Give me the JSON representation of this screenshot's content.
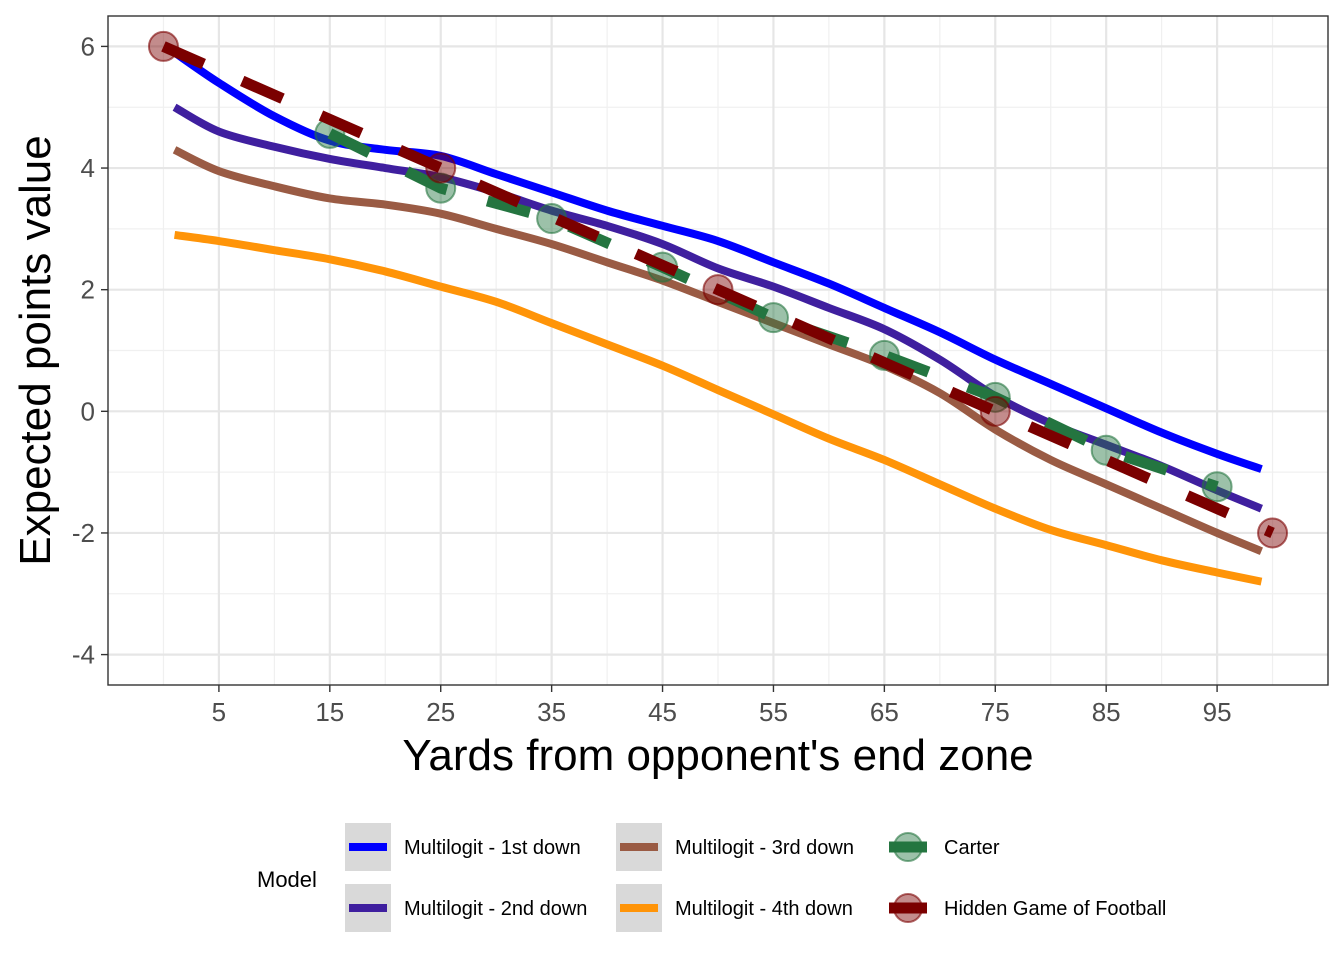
{
  "chart_data": {
    "type": "line",
    "title": "",
    "xlabel": "Yards from opponent's end zone",
    "ylabel": "Expected points value",
    "xlim": [
      -5,
      105
    ],
    "ylim": [
      -4.5,
      6.5
    ],
    "x_ticks": [
      5,
      15,
      25,
      35,
      45,
      55,
      65,
      75,
      85,
      95
    ],
    "y_ticks": [
      -4,
      -2,
      0,
      2,
      4,
      6
    ],
    "grid": true,
    "legend": {
      "title": "Model",
      "position": "bottom"
    },
    "series": [
      {
        "name": "Multilogit - 1st down",
        "style": "line",
        "color": "#0000ff",
        "x": [
          1,
          5,
          10,
          15,
          20,
          25,
          30,
          35,
          40,
          45,
          50,
          55,
          60,
          65,
          70,
          75,
          80,
          85,
          90,
          95,
          99
        ],
        "y": [
          5.9,
          5.4,
          4.85,
          4.45,
          4.3,
          4.2,
          3.9,
          3.6,
          3.3,
          3.05,
          2.8,
          2.45,
          2.1,
          1.7,
          1.3,
          0.85,
          0.45,
          0.05,
          -0.35,
          -0.7,
          -0.95
        ]
      },
      {
        "name": "Multilogit - 2nd down",
        "style": "line",
        "color": "#3f1f9f",
        "x": [
          1,
          5,
          10,
          15,
          20,
          25,
          30,
          35,
          40,
          45,
          50,
          55,
          60,
          65,
          70,
          75,
          80,
          85,
          90,
          95,
          99
        ],
        "y": [
          5.0,
          4.6,
          4.35,
          4.15,
          4.0,
          3.85,
          3.6,
          3.3,
          3.05,
          2.75,
          2.35,
          2.05,
          1.7,
          1.35,
          0.85,
          0.25,
          -0.2,
          -0.55,
          -0.9,
          -1.3,
          -1.6
        ]
      },
      {
        "name": "Multilogit - 3rd down",
        "style": "line",
        "color": "#9a5b44",
        "x": [
          1,
          5,
          10,
          15,
          20,
          25,
          30,
          35,
          40,
          45,
          50,
          55,
          60,
          65,
          70,
          75,
          80,
          85,
          90,
          95,
          99
        ],
        "y": [
          4.3,
          3.95,
          3.7,
          3.5,
          3.4,
          3.25,
          3.0,
          2.75,
          2.45,
          2.15,
          1.8,
          1.45,
          1.1,
          0.75,
          0.3,
          -0.3,
          -0.8,
          -1.2,
          -1.6,
          -2.0,
          -2.3
        ]
      },
      {
        "name": "Multilogit - 4th down",
        "style": "line",
        "color": "#ff9408",
        "x": [
          1,
          5,
          10,
          15,
          20,
          25,
          30,
          35,
          40,
          45,
          50,
          55,
          60,
          65,
          70,
          75,
          80,
          85,
          90,
          95,
          99
        ],
        "y": [
          2.9,
          2.8,
          2.65,
          2.5,
          2.3,
          2.05,
          1.8,
          1.45,
          1.1,
          0.75,
          0.35,
          -0.05,
          -0.45,
          -0.8,
          -1.2,
          -1.6,
          -1.95,
          -2.2,
          -2.45,
          -2.65,
          -2.8
        ]
      },
      {
        "name": "Carter",
        "style": "dashed-points",
        "color": "#247540",
        "x": [
          15,
          25,
          35,
          45,
          55,
          65,
          75,
          85,
          95
        ],
        "y": [
          4.57,
          3.67,
          3.17,
          2.37,
          1.54,
          0.92,
          0.23,
          -0.64,
          -1.24
        ]
      },
      {
        "name": "Hidden Game of Football",
        "style": "dashed-points",
        "color": "#7b0000",
        "x": [
          0,
          25,
          50,
          75,
          100
        ],
        "y": [
          6.0,
          4.0,
          2.0,
          0.0,
          -2.0
        ]
      }
    ]
  }
}
